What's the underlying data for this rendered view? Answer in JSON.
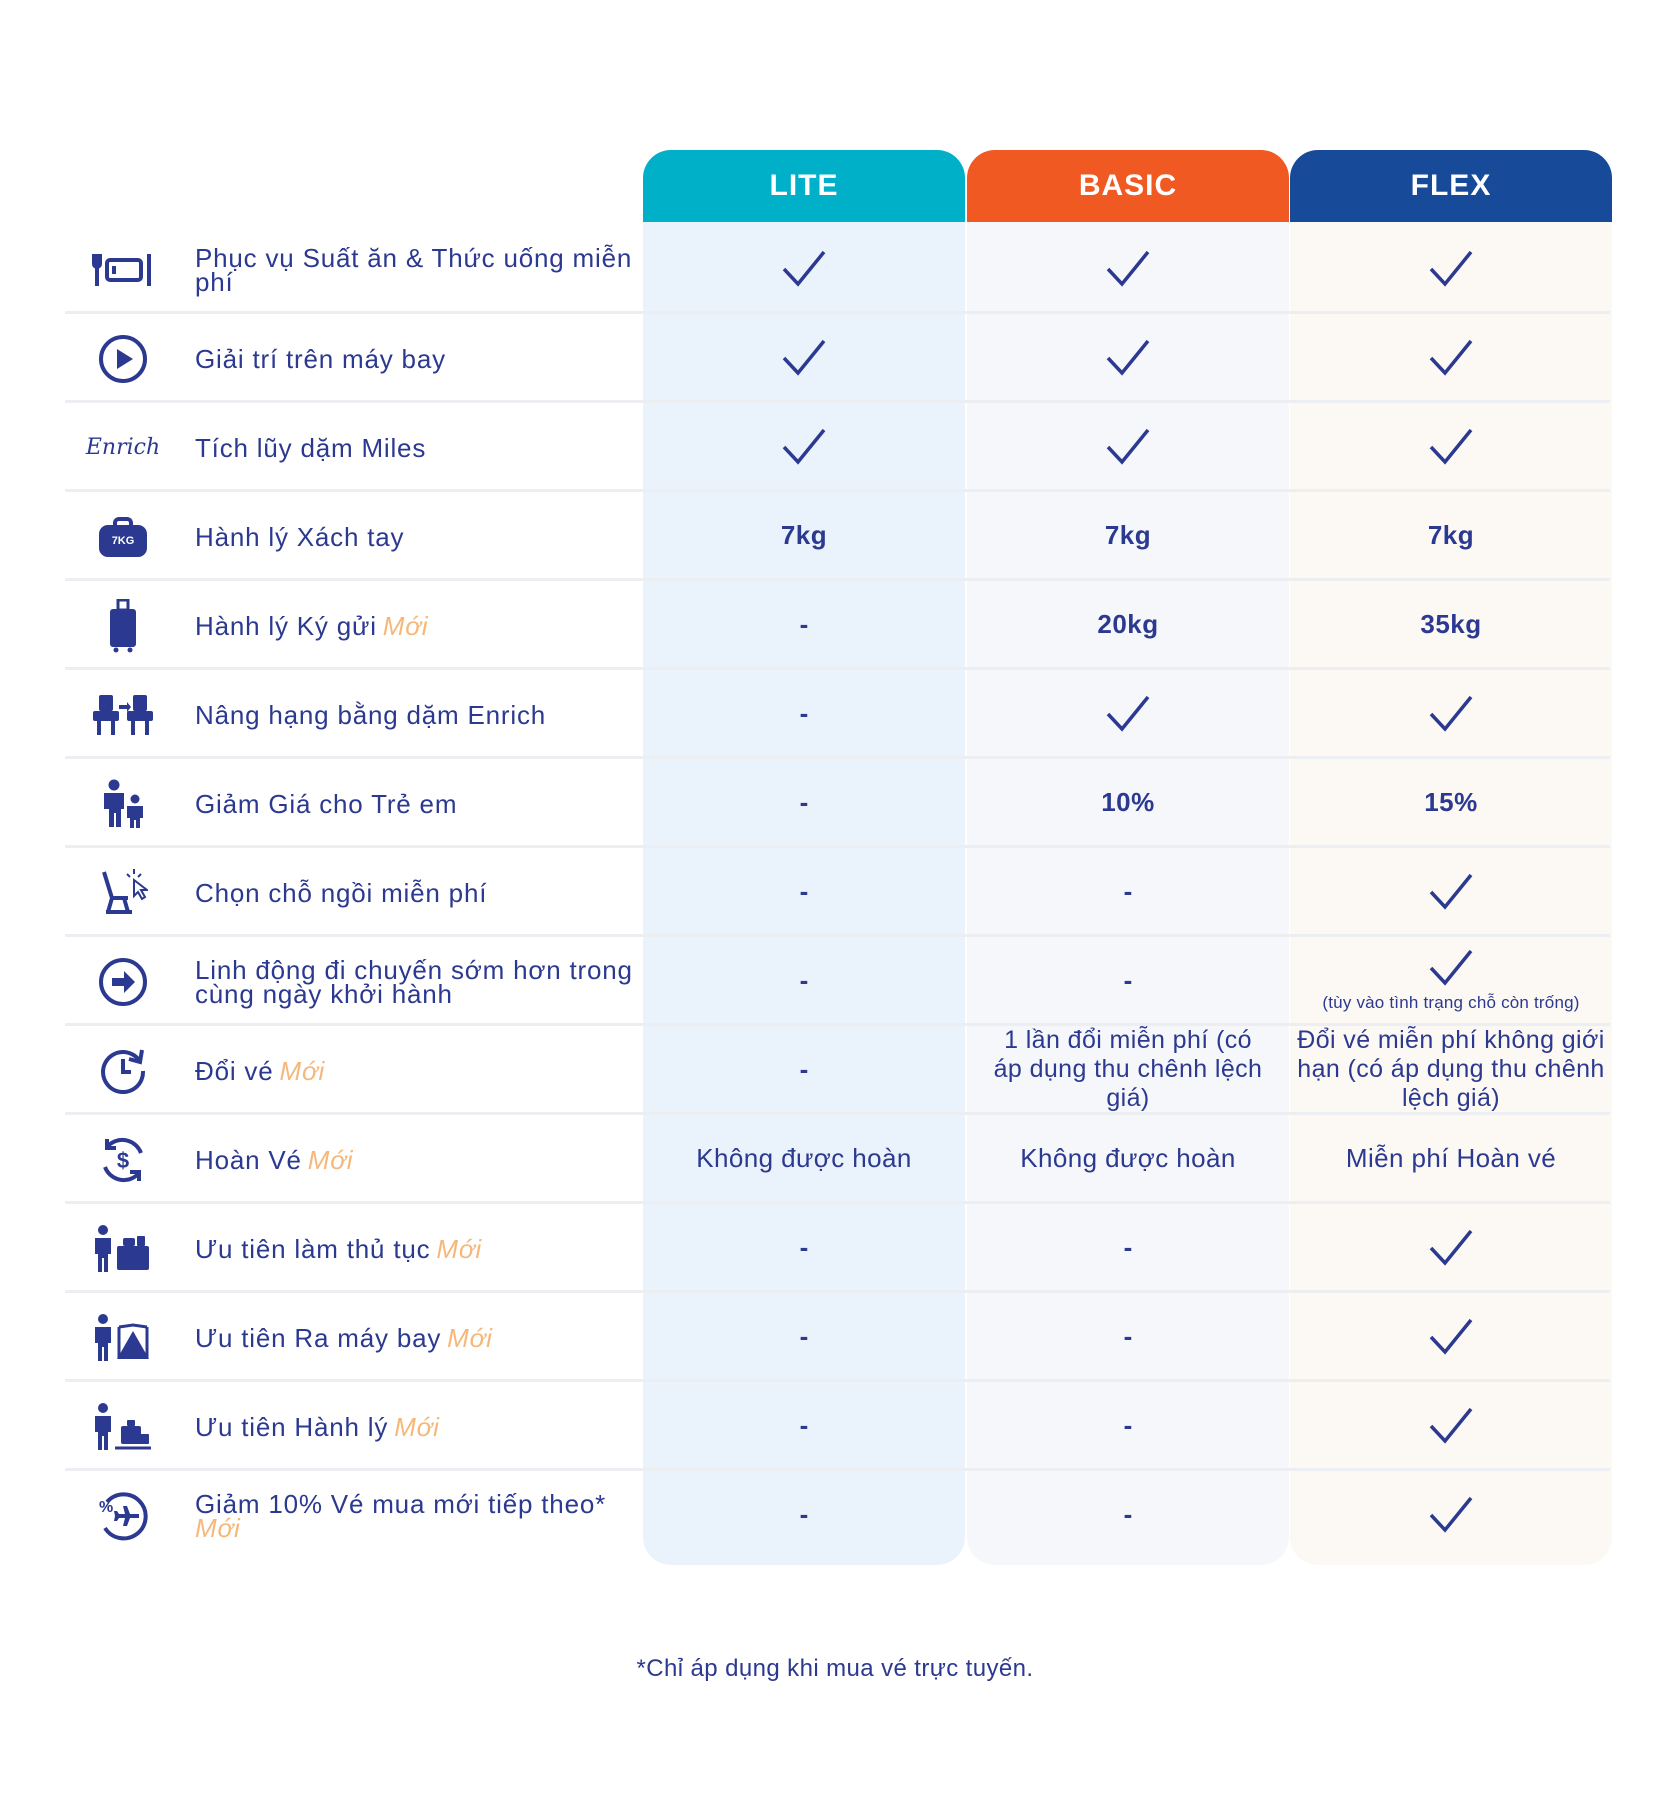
{
  "tiers": [
    "LITE",
    "BASIC",
    "FLEX"
  ],
  "colors": {
    "lite": "#00b0c8",
    "basic": "#f05a22",
    "flex": "#184a9a",
    "text": "#2b3990",
    "new_badge": "#f6b87a"
  },
  "new_label": "Mới",
  "rows": [
    {
      "icon": "meal-icon",
      "label": "Phục vụ Suất ăn & Thức uống miễn phí",
      "lite": "✓",
      "basic": "✓",
      "flex": "✓"
    },
    {
      "icon": "play-icon",
      "label": "Giải trí trên máy bay",
      "lite": "✓",
      "basic": "✓",
      "flex": "✓"
    },
    {
      "icon": "enrich-logo-icon",
      "label": "Tích lũy dặm Miles",
      "lite": "✓",
      "basic": "✓",
      "flex": "✓"
    },
    {
      "icon": "carry-on-bag-icon",
      "label": "Hành lý Xách tay",
      "lite": "7kg",
      "basic": "7kg",
      "flex": "7kg"
    },
    {
      "icon": "suitcase-icon",
      "label": "Hành lý Ký gửi",
      "lite": "-",
      "basic": "20kg",
      "flex": "35kg"
    },
    {
      "icon": "seat-upgrade-icon",
      "label": "Nâng hạng bằng dặm Enrich",
      "lite": "-",
      "basic": "✓",
      "flex": "✓"
    },
    {
      "icon": "family-icon",
      "label": "Giảm Giá cho Trẻ em",
      "lite": "-",
      "basic": "10%",
      "flex": "15%"
    },
    {
      "icon": "seat-select-icon",
      "label": "Chọn chỗ ngồi miễn phí",
      "lite": "-",
      "basic": "-",
      "flex": "✓"
    },
    {
      "icon": "arrow-circle-icon",
      "label": "Linh động đi chuyến sớm hơn trong cùng ngày khởi hành",
      "lite": "-",
      "basic": "-",
      "flex": "✓",
      "flex_note": "(tùy vào tình trạng chỗ còn trống)"
    },
    {
      "icon": "clock-refresh-icon",
      "label": "Đổi vé",
      "lite": "-",
      "basic": "1 lần đổi miễn phí (có áp dụng thu chênh lệch giá)",
      "flex": "Đổi vé miễn phí không giới hạn (có áp dụng thu chênh lệch giá)"
    },
    {
      "icon": "refund-icon",
      "label": "Hoàn Vé",
      "lite": "Không được hoàn",
      "basic": "Không được hoàn",
      "flex": "Miễn phí Hoàn vé"
    },
    {
      "icon": "priority-checkin-icon",
      "label": "Ưu tiên làm thủ tục",
      "lite": "-",
      "basic": "-",
      "flex": "✓"
    },
    {
      "icon": "priority-boarding-icon",
      "label": "Ưu tiên Ra máy bay",
      "lite": "-",
      "basic": "-",
      "flex": "✓"
    },
    {
      "icon": "priority-baggage-icon",
      "label": "Ưu tiên Hành lý",
      "lite": "-",
      "basic": "-",
      "flex": "✓"
    },
    {
      "icon": "discount-plane-icon",
      "label": "Giảm 10% Vé mua mới tiếp theo*",
      "lite": "-",
      "basic": "-",
      "flex": "✓"
    }
  ],
  "icon_texts": {
    "enrich": "Enrich",
    "bag_weight": "7KG"
  },
  "footnote": "*Chỉ áp dụng khi mua vé trực tuyến."
}
